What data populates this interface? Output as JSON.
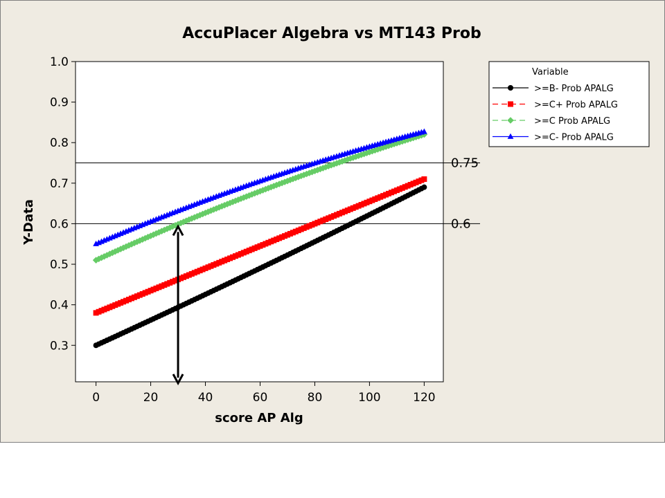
{
  "chart_data": {
    "type": "scatter",
    "title": "AccuPlacer Algebra vs MT143 Prob",
    "xlabel": "score AP Alg",
    "ylabel": "Y-Data",
    "xlim": [
      -7.5,
      127
    ],
    "ylim": [
      0.21,
      1.0
    ],
    "xticks": [
      0,
      20,
      40,
      60,
      80,
      100,
      120
    ],
    "yticks": [
      0.3,
      0.4,
      0.5,
      0.6,
      0.7,
      0.8,
      0.9,
      1.0
    ],
    "x": {
      "start": 0,
      "end": 120,
      "step": 1
    },
    "grid": false,
    "legend": {
      "position": "right",
      "title": "Variable",
      "entries": [
        ">=B- Prob APALG",
        ">=C+ Prob APALG",
        ">=C Prob APALG",
        ">=C- Prob APALG"
      ]
    },
    "series": [
      {
        "name": ">=B- Prob APALG",
        "color": "#000000",
        "marker": "circle",
        "line": "solid",
        "y0": 0.3,
        "y60": 0.49,
        "y120": 0.69
      },
      {
        "name": ">=C+ Prob APALG",
        "color": "#ff0000",
        "marker": "square",
        "line": "dashed",
        "y0": 0.38,
        "y60": 0.545,
        "y120": 0.71
      },
      {
        "name": ">=C Prob APALG",
        "color": "#66cc66",
        "marker": "diamond",
        "line": "dashed",
        "y0": 0.51,
        "y60": 0.68,
        "y120": 0.82
      },
      {
        "name": ">=C- Prob APALG",
        "color": "#0000ff",
        "marker": "triangle",
        "line": "solid",
        "y0": 0.55,
        "y60": 0.705,
        "y120": 0.827
      }
    ],
    "reference_lines": [
      {
        "y": 0.75,
        "label": "0.75"
      },
      {
        "y": 0.6,
        "label": "0.6"
      }
    ],
    "annotation_arrow": {
      "x": 30,
      "y_from": 0.6,
      "y_to": 0.21
    }
  }
}
